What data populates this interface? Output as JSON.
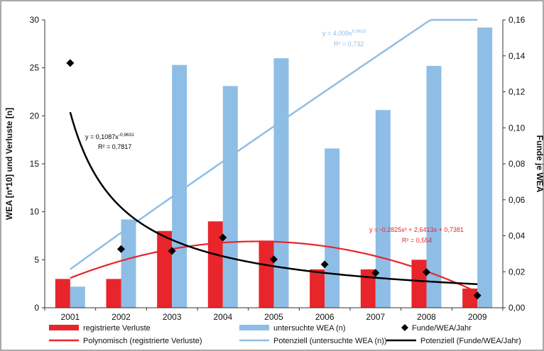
{
  "chart_data": {
    "type": "bar",
    "categories": [
      "2001",
      "2002",
      "2003",
      "2004",
      "2005",
      "2006",
      "2007",
      "2008",
      "2009"
    ],
    "series": [
      {
        "name": "registrierte Verluste",
        "type": "bar",
        "axis": "left",
        "color": "#e8252a",
        "values": [
          3,
          3,
          8,
          9,
          7,
          4,
          4,
          5,
          2
        ]
      },
      {
        "name": "untersuchte WEA (n)",
        "type": "bar",
        "axis": "left",
        "color": "#8ebee6",
        "values": [
          2.2,
          9.2,
          25.3,
          23.1,
          26.0,
          16.6,
          20.6,
          25.2,
          29.2
        ]
      },
      {
        "name": "Funde/WEA/Jahr",
        "type": "scatter",
        "axis": "right",
        "color": "#000000",
        "values": [
          0.136,
          0.0326,
          0.0316,
          0.039,
          0.0269,
          0.0241,
          0.0194,
          0.0198,
          0.0068
        ]
      }
    ],
    "trendlines": [
      {
        "name": "Polynomisch (registrierte Verluste)",
        "axis": "left",
        "color": "#e8252a",
        "form": "poly2",
        "coef": [
          -0.2825,
          2.6413,
          0.7381
        ],
        "equation": "y = -0,2825x² + 2,6413x + 0,7381",
        "r2": "R² = 0,554"
      },
      {
        "name": "Potenziell (untersuchte WEA (n))",
        "axis": "left",
        "color": "#8ebee6",
        "form": "power",
        "coef": [
          4.009,
          0.9633
        ],
        "equation": "y = 4,009x⁰˙9633",
        "equation_base": "y = 4,009x",
        "equation_exp": "0,9633",
        "r2": "R² = 0,732"
      },
      {
        "name": "Potenziell (Funde/WEA/Jahr)",
        "axis": "right",
        "color": "#000000",
        "form": "power",
        "coef": [
          0.1087,
          -0.9631
        ],
        "equation_base": "y = 0,1087x",
        "equation_exp": "-0,9631",
        "r2": "R² = 0,7817"
      }
    ],
    "ylabel": "WEA [n*10] und Verluste [n]",
    "y2label": "Funde je WEA",
    "ylim": [
      0,
      30
    ],
    "y2lim": [
      0,
      0.16
    ],
    "yticks": [
      "0",
      "5",
      "10",
      "15",
      "20",
      "25",
      "30"
    ],
    "y2ticks": [
      "0,00",
      "0,02",
      "0,04",
      "0,06",
      "0,08",
      "0,10",
      "0,12",
      "0,14",
      "0,16"
    ],
    "grid": false,
    "legend_position": "bottom"
  }
}
